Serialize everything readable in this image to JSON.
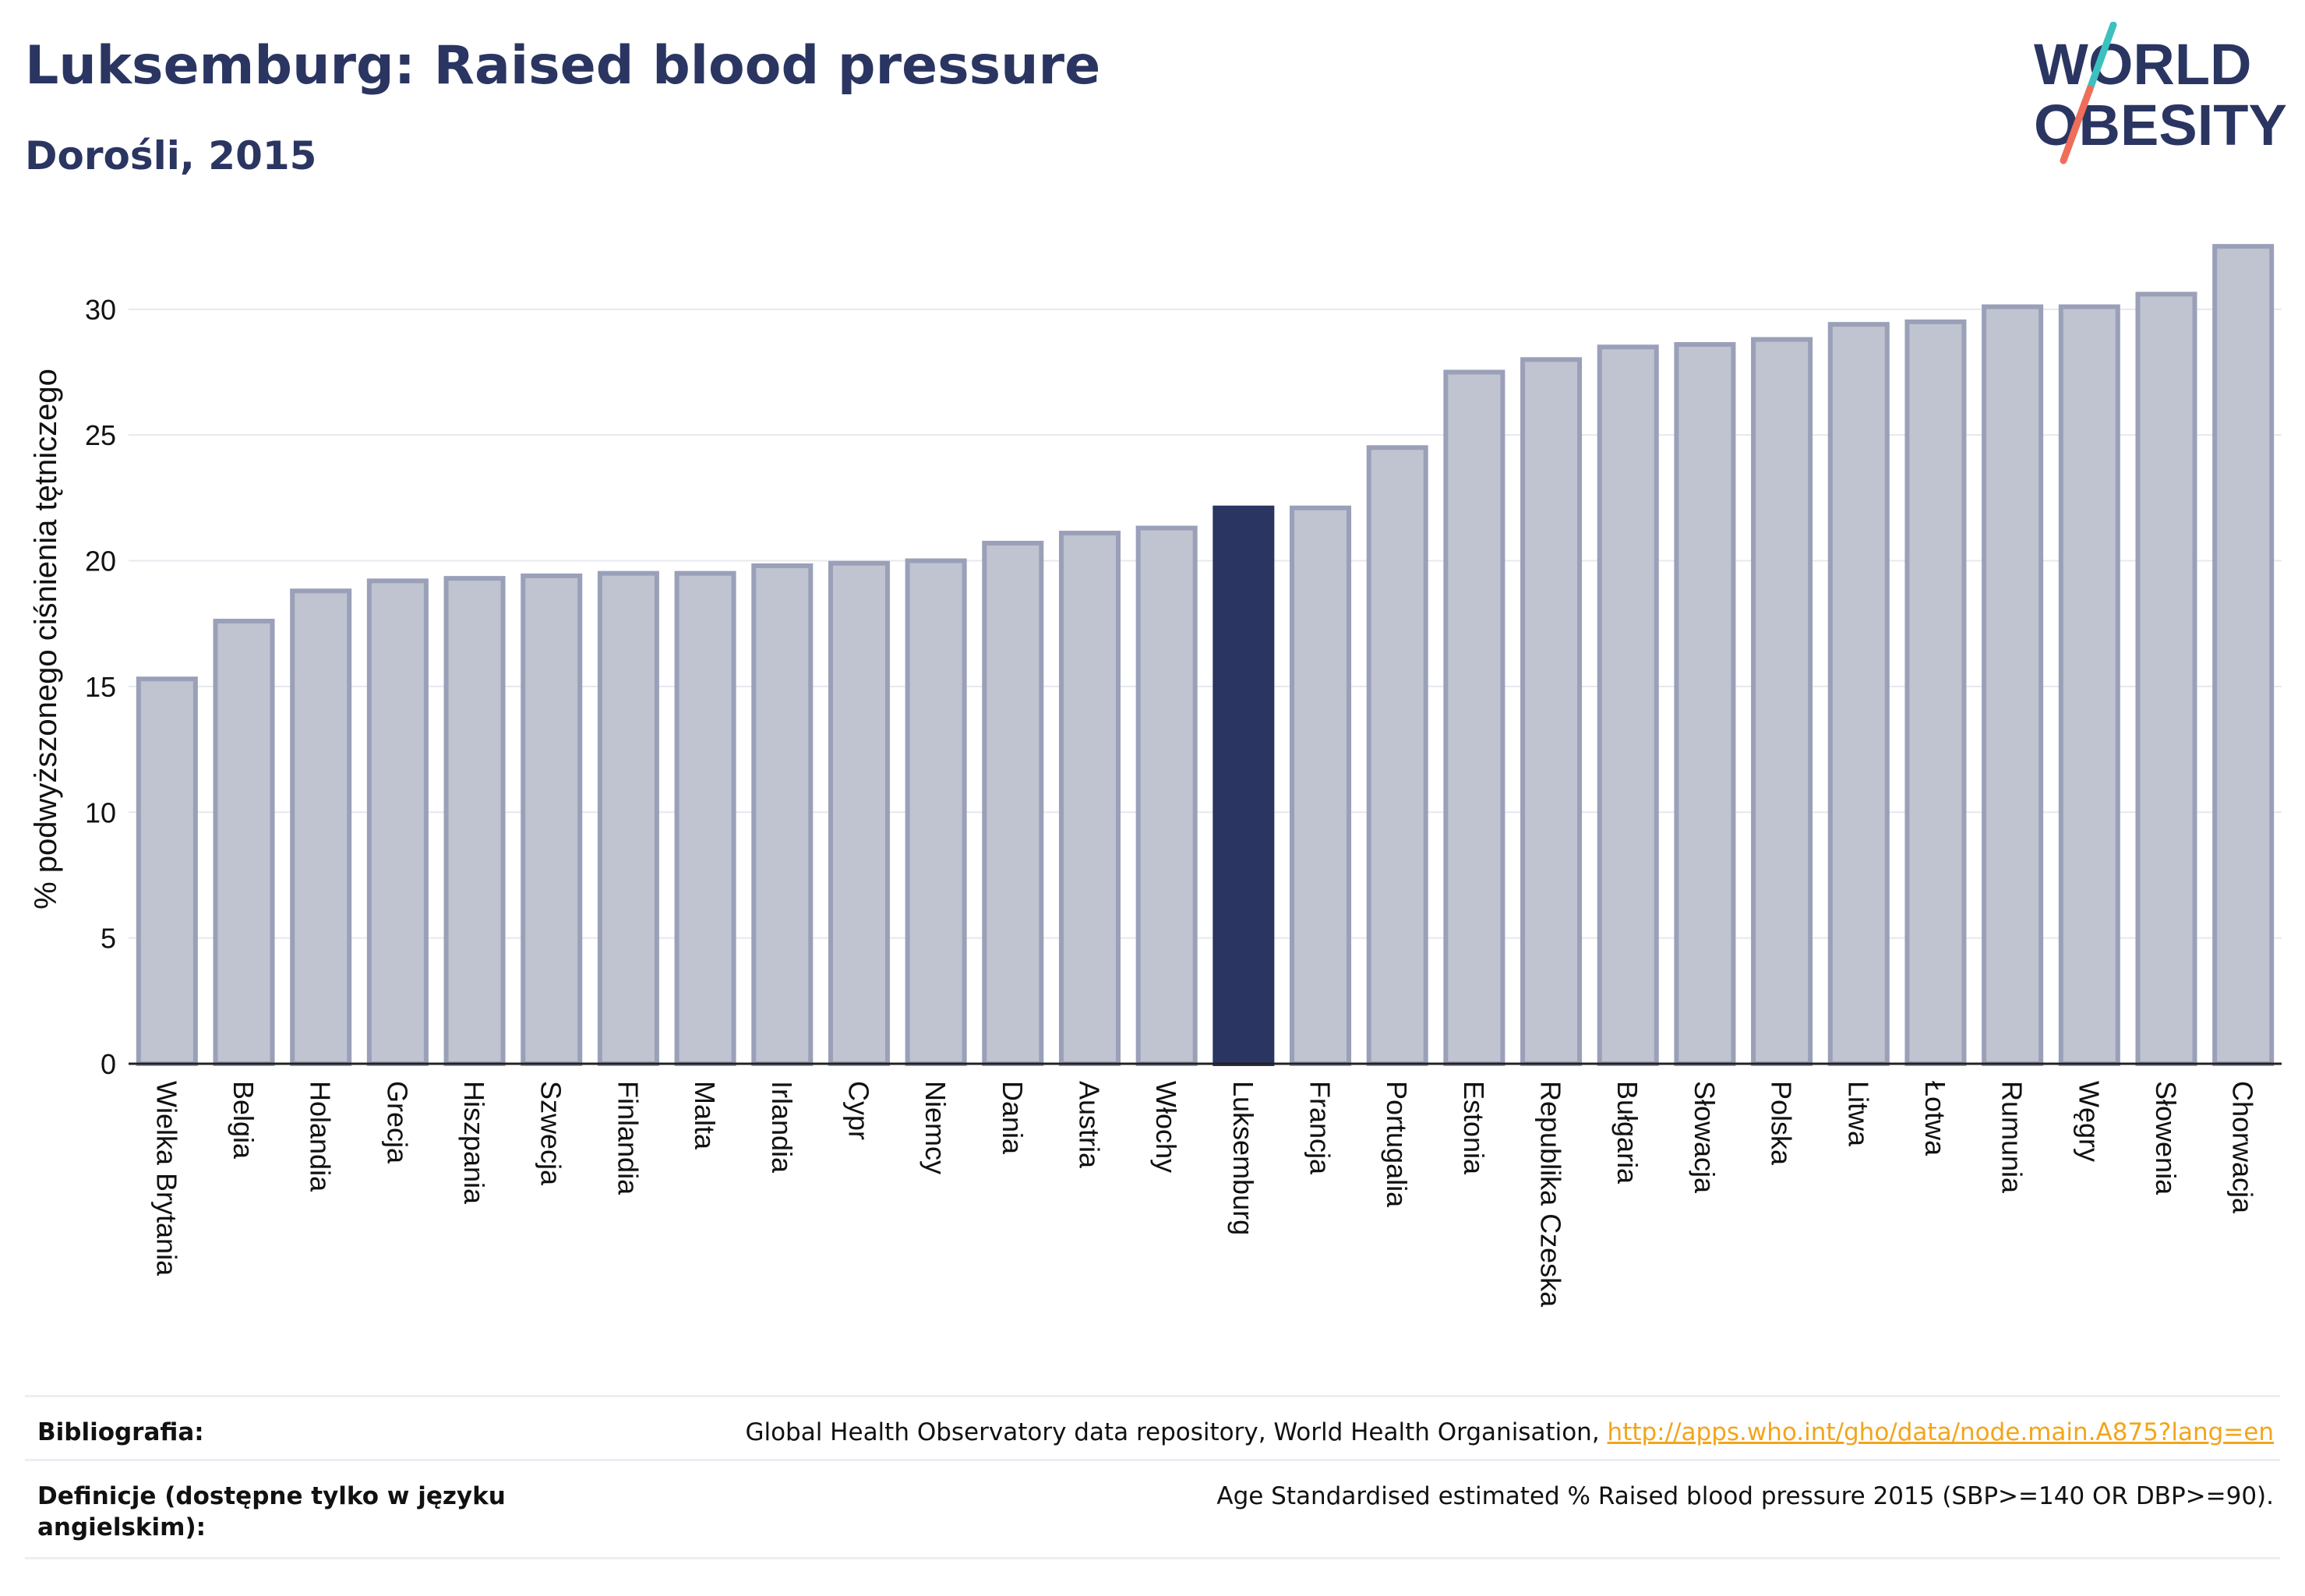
{
  "header": {
    "title": "Luksemburg: Raised blood pressure",
    "subtitle": "Dorośli, 2015"
  },
  "logo": {
    "line1": "WORLD",
    "line2": "OBESITY",
    "colors": {
      "text": "#2a3561",
      "slash_teal": "#3cc0c0",
      "slash_coral": "#ee6e5a"
    }
  },
  "colors": {
    "bar_default_fill": "#c0c3d0",
    "bar_default_stroke": "#9aa0b8",
    "bar_highlight_fill": "#2a3561",
    "grid": "#e6e8ef",
    "axis": "#222222"
  },
  "chart_data": {
    "type": "bar",
    "title": "Luksemburg: Raised blood pressure",
    "subtitle": "Dorośli, 2015",
    "xlabel": "",
    "ylabel": "% podwyższonego ciśnienia tętniczego",
    "ylim": [
      0,
      33
    ],
    "yticks": [
      0,
      5,
      10,
      15,
      20,
      25,
      30
    ],
    "grid": true,
    "highlight": "Luksemburg",
    "categories": [
      "Wielka Brytania",
      "Belgia",
      "Holandia",
      "Grecja",
      "Hiszpania",
      "Szwecja",
      "Finlandia",
      "Malta",
      "Irlandia",
      "Cypr",
      "Niemcy",
      "Dania",
      "Austria",
      "Włochy",
      "Luksemburg",
      "Francja",
      "Portugalia",
      "Estonia",
      "Republika Czeska",
      "Bułgaria",
      "Słowacja",
      "Polska",
      "Litwa",
      "Łotwa",
      "Rumunia",
      "Węgry",
      "Słowenia",
      "Chorwacja"
    ],
    "values": [
      15.3,
      17.6,
      18.8,
      19.2,
      19.3,
      19.4,
      19.5,
      19.5,
      19.8,
      19.9,
      20.0,
      20.7,
      21.1,
      21.3,
      22.1,
      22.1,
      24.5,
      27.5,
      28.0,
      28.5,
      28.6,
      28.8,
      29.4,
      29.5,
      30.1,
      30.1,
      30.6,
      32.5
    ]
  },
  "footer": {
    "bibliography_label": "Bibliografia:",
    "bibliography_text": "Global Health Observatory data repository, World Health Organisation, ",
    "bibliography_link": "http://apps.who.int/gho/data/node.main.A875?lang=en",
    "definitions_label": "Definicje (dostępne tylko w języku angielskim):",
    "definitions_text": "Age Standardised estimated % Raised blood pressure 2015 (SBP>=140 OR DBP>=90)."
  }
}
